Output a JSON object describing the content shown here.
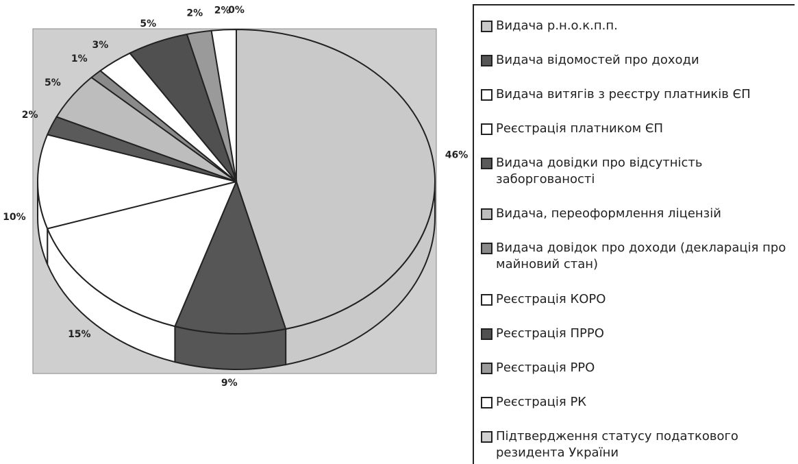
{
  "chart_data": {
    "type": "pie",
    "categories": [
      "Видача р.н.о.к.п.п.",
      "Видача відомостей про доходи",
      "Видача витягів з реєстру платників ЄП",
      "Реєстрація платником ЄП",
      "Видача довідки про відсутність заборгованості",
      "Видача, переоформлення ліцензій",
      "Видача довідок про доходи (декларація про майновий стан)",
      "Реєстрація КОРО",
      "Реєстрація ПРРО",
      "Реєстрація РРО",
      "Реєстрація РК",
      "Підтвердження статусу податкового резидента України"
    ],
    "values": [
      46,
      9,
      15,
      10,
      2,
      5,
      1,
      3,
      5,
      2,
      2,
      0
    ],
    "value_labels": [
      "46%",
      "9%",
      "15%",
      "10%",
      "2%",
      "5%",
      "1%",
      "3%",
      "5%",
      "2%",
      "2%",
      "0%"
    ],
    "colors": [
      "#c9c9c9",
      "#565656",
      "#ffffff",
      "#ffffff",
      "#5a5a5a",
      "#bdbdbd",
      "#8a8a8a",
      "#ffffff",
      "#505050",
      "#9a9a9a",
      "#ffffff",
      "#d0d0d0"
    ],
    "legend": "right"
  }
}
